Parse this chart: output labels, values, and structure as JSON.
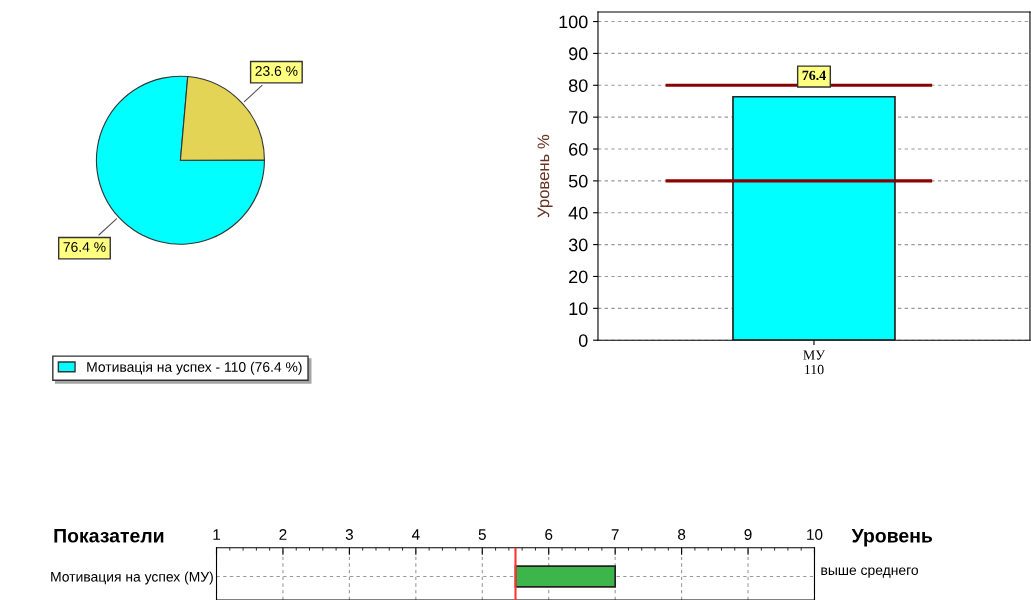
{
  "chart_data": [
    {
      "type": "pie",
      "categories": [
        "Мотивація на успех - 110 (76.4 %)",
        null
      ],
      "values": [
        76.4,
        23.6
      ],
      "colors": [
        "#00ffff",
        "#e3d455"
      ],
      "value_labels": [
        "76.4 %",
        "23.6 %"
      ],
      "legend": "bottom"
    },
    {
      "type": "bar",
      "categories": [
        "МУ\n110"
      ],
      "values": [
        76.4
      ],
      "colors": [
        "#00ffff"
      ],
      "ylabel": "Уровень %",
      "ylim": [
        0,
        103
      ],
      "yticks": [
        0,
        10,
        20,
        30,
        40,
        50,
        60,
        70,
        80,
        90,
        100
      ],
      "grid": "y",
      "data_labels": true,
      "ref_lines": [
        {
          "axis": "y",
          "value": 80,
          "color": "#8b0000"
        },
        {
          "axis": "y",
          "value": 50,
          "color": "#8b0000"
        }
      ]
    },
    {
      "type": "bar",
      "orientation": "horizontal",
      "categories": [
        "Мотивация на успех (МУ)"
      ],
      "values": [
        1.5
      ],
      "base": [
        5.5
      ],
      "colors": [
        "#3cb54a"
      ],
      "xlim": [
        1,
        10
      ],
      "xticks": [
        1,
        2,
        3,
        4,
        5,
        6,
        7,
        8,
        9,
        10
      ],
      "grid": true,
      "ref_lines": [
        {
          "axis": "x",
          "value": 5.5,
          "color": "#ff3333"
        }
      ],
      "annotations": [
        "Показатели",
        "Уровень",
        "выше среднего"
      ]
    }
  ]
}
